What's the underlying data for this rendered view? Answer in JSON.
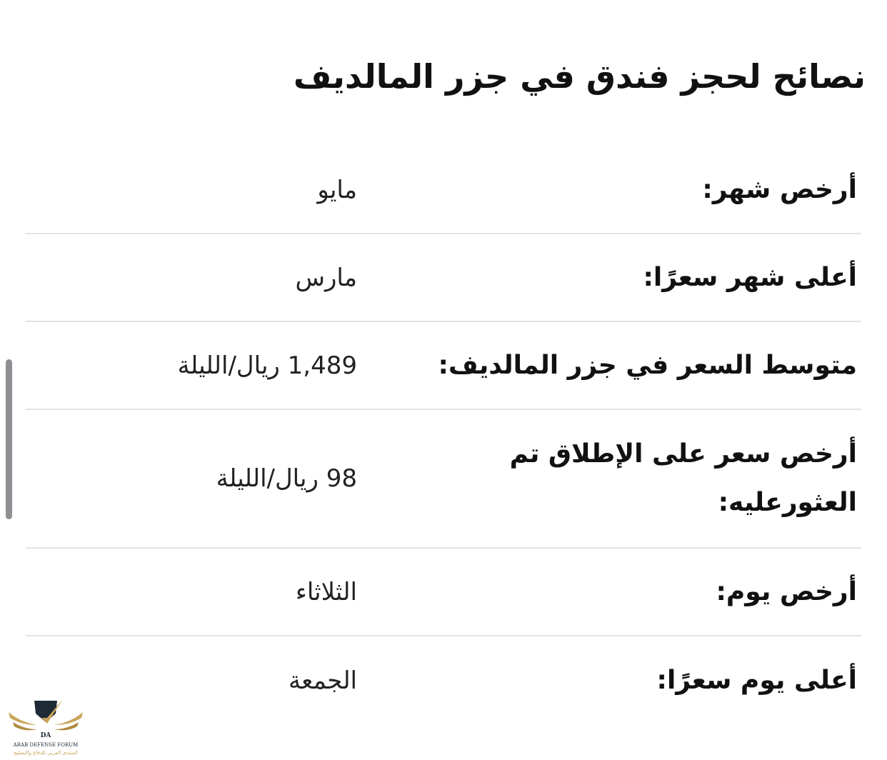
{
  "title": "نصائح لحجز فندق في جزر المالديف",
  "rows": [
    {
      "label": "أرخص شهر:",
      "value": "مايو"
    },
    {
      "label": "أعلى شهر سعرًا:",
      "value": "مارس"
    },
    {
      "label": "متوسط السعر في جزر المالديف:",
      "value": "1,489 ريال/الليلة"
    },
    {
      "label": "أرخص سعر على الإطلاق تم العثورعليه:",
      "value": "98 ريال/الليلة"
    },
    {
      "label": "أرخص يوم:",
      "value": "الثلاثاء"
    },
    {
      "label": "أعلى يوم سعرًا:",
      "value": "الجمعة"
    }
  ],
  "watermark": {
    "text_en": "ARAB DEFENSE FORUM",
    "text_ar": "المنتدى العربي للدفاع والتسليح",
    "mark": "DA"
  }
}
